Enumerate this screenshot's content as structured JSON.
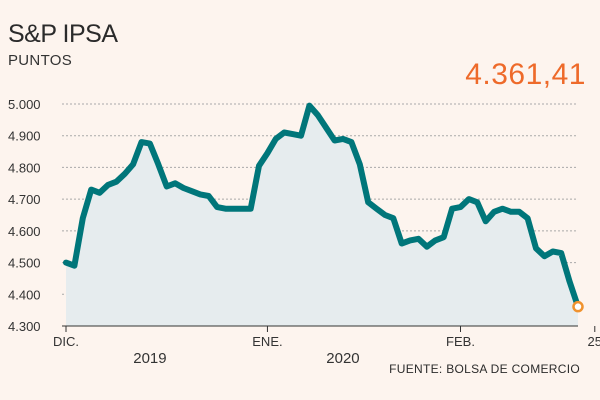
{
  "chart_data": {
    "type": "area",
    "title": "S&P IPSA",
    "subtitle": "PUNTOS",
    "last_value_label": "4.361,41",
    "source": "FUENTE: BOLSA DE COMERCIO",
    "ylim": [
      4300,
      5000
    ],
    "y_ticks": [
      {
        "value": 5000,
        "label": "5.000"
      },
      {
        "value": 4900,
        "label": "4.900"
      },
      {
        "value": 4800,
        "label": "4.800"
      },
      {
        "value": 4700,
        "label": "4.700"
      },
      {
        "value": 4600,
        "label": "4.600"
      },
      {
        "value": 4500,
        "label": "4.500"
      },
      {
        "value": 4400,
        "label": "4.400"
      },
      {
        "value": 4300,
        "label": "4.300"
      }
    ],
    "x_labels": [
      {
        "label": "DIC.",
        "index": 0
      },
      {
        "label": "ENE.",
        "index": 24
      },
      {
        "label": "FEB.",
        "index": 47
      },
      {
        "label": "25",
        "index": 63
      }
    ],
    "year_labels": [
      {
        "label": "2019",
        "index": 10
      },
      {
        "label": "2020",
        "index": 33
      }
    ],
    "values": [
      4500,
      4490,
      4640,
      4730,
      4720,
      4745,
      4755,
      4780,
      4810,
      4880,
      4875,
      4810,
      4740,
      4750,
      4735,
      4725,
      4715,
      4710,
      4675,
      4670,
      4670,
      4670,
      4670,
      4805,
      4845,
      4890,
      4910,
      4905,
      4900,
      4995,
      4965,
      4925,
      4885,
      4890,
      4880,
      4810,
      4690,
      4670,
      4650,
      4640,
      4560,
      4570,
      4575,
      4550,
      4570,
      4580,
      4670,
      4675,
      4700,
      4690,
      4630,
      4660,
      4670,
      4660,
      4660,
      4640,
      4545,
      4520,
      4535,
      4530,
      4440,
      4361
    ],
    "colors": {
      "line": "#00767a",
      "fill": "#e6ecee",
      "grid": "#a9a9a9",
      "marker": "#f0922e",
      "highlight": "#ee6a2a"
    }
  }
}
